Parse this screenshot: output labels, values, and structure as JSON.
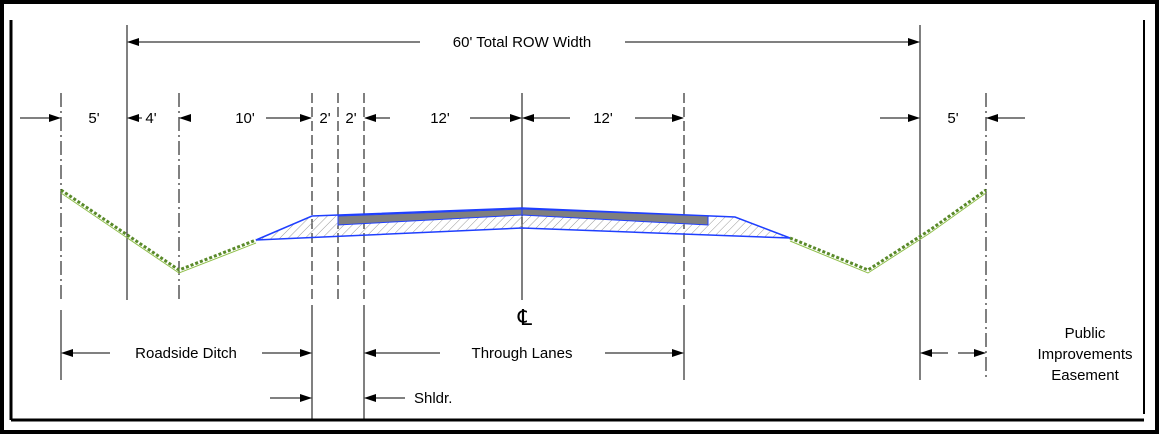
{
  "title": "60' Total ROW Width",
  "dimensions": {
    "d1": "5'",
    "d2": "4'",
    "d3": "10'",
    "d4": "2'",
    "d5": "2'",
    "d6": "12'",
    "d7": "12'",
    "d8": "5'"
  },
  "labels": {
    "roadside_ditch": "Roadside Ditch",
    "through_lanes": "Through Lanes",
    "shoulder": "Shldr.",
    "easement_line1": "Public",
    "easement_line2": "Improvements",
    "easement_line3": "Easement",
    "centerline": "℄"
  },
  "colors": {
    "frame": "#000000",
    "pavement": "#7f7f7f",
    "subbase_outline": "#1f3fff",
    "grass": "#5a8a2a",
    "hatch": "#a0a0a0"
  }
}
